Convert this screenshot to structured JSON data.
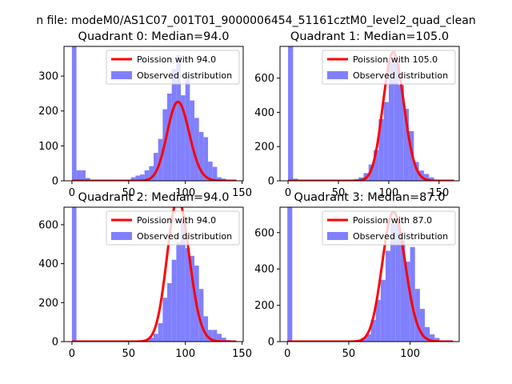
{
  "figure": {
    "suptitle": "n file: modeM0/AS1C07_001T01_9000006454_51161cztM0_level2_quad_clean"
  },
  "colors": {
    "histogram": "#8080ff",
    "poisson_line": "#ff0000",
    "axes": "#000000",
    "background": "#ffffff"
  },
  "chart_data": [
    {
      "type": "bar",
      "title": "Quadrant 0: Median=94.0",
      "xlim": [
        -7,
        151
      ],
      "ylim": [
        0,
        385
      ],
      "xticks": [
        0,
        50,
        100,
        150
      ],
      "yticks": [
        0,
        100,
        200,
        300
      ],
      "bin_width": 4,
      "bins": [
        [
          0,
          385
        ],
        [
          4,
          30
        ],
        [
          8,
          30
        ],
        [
          12,
          8
        ],
        [
          16,
          2
        ],
        [
          52,
          10
        ],
        [
          56,
          15
        ],
        [
          60,
          18
        ],
        [
          64,
          30
        ],
        [
          68,
          42
        ],
        [
          72,
          80
        ],
        [
          76,
          120
        ],
        [
          80,
          205
        ],
        [
          84,
          250
        ],
        [
          88,
          320
        ],
        [
          92,
          360
        ],
        [
          96,
          245
        ],
        [
          100,
          300
        ],
        [
          104,
          230
        ],
        [
          108,
          180
        ],
        [
          112,
          140
        ],
        [
          116,
          125
        ],
        [
          120,
          55
        ],
        [
          124,
          40
        ],
        [
          128,
          10
        ],
        [
          132,
          6
        ],
        [
          136,
          2
        ]
      ],
      "legend": [
        {
          "label": "Poission with 94.0",
          "kind": "line"
        },
        {
          "label": "Observed distribution",
          "kind": "patch"
        }
      ],
      "poisson": {
        "lambda": 94.0,
        "scale": 5500,
        "x": [
          0,
          145
        ]
      }
    },
    {
      "type": "bar",
      "title": "Quadrant 1: Median=105.0",
      "xlim": [
        -8,
        170
      ],
      "ylim": [
        0,
        785
      ],
      "xticks": [
        0,
        50,
        100,
        150
      ],
      "yticks": [
        0,
        200,
        400,
        600
      ],
      "bin_width": 5,
      "bins": [
        [
          0,
          785
        ],
        [
          5,
          12
        ],
        [
          10,
          5
        ],
        [
          60,
          6
        ],
        [
          65,
          10
        ],
        [
          70,
          20
        ],
        [
          75,
          45
        ],
        [
          80,
          95
        ],
        [
          85,
          180
        ],
        [
          90,
          360
        ],
        [
          95,
          460
        ],
        [
          100,
          690
        ],
        [
          105,
          700
        ],
        [
          110,
          560
        ],
        [
          115,
          420
        ],
        [
          120,
          290
        ],
        [
          125,
          110
        ],
        [
          130,
          60
        ],
        [
          135,
          40
        ],
        [
          140,
          20
        ],
        [
          145,
          6
        ],
        [
          150,
          3
        ]
      ],
      "legend": [
        {
          "label": "Poission with 105.0",
          "kind": "line"
        },
        {
          "label": "Observed distribution",
          "kind": "patch"
        }
      ],
      "poisson": {
        "lambda": 105.0,
        "scale": 19300,
        "x": [
          0,
          165
        ]
      }
    },
    {
      "type": "bar",
      "title": "Quadrant 2: Median=94.0",
      "xlim": [
        -7,
        151
      ],
      "ylim": [
        0,
        690
      ],
      "xticks": [
        0,
        50,
        100,
        150
      ],
      "yticks": [
        0,
        200,
        400,
        600
      ],
      "bin_width": 4,
      "bins": [
        [
          0,
          690
        ],
        [
          60,
          5
        ],
        [
          64,
          10
        ],
        [
          68,
          20
        ],
        [
          72,
          40
        ],
        [
          76,
          95
        ],
        [
          80,
          225
        ],
        [
          84,
          300
        ],
        [
          88,
          420
        ],
        [
          92,
          510
        ],
        [
          96,
          620
        ],
        [
          100,
          480
        ],
        [
          104,
          440
        ],
        [
          108,
          390
        ],
        [
          112,
          270
        ],
        [
          116,
          130
        ],
        [
          120,
          60
        ],
        [
          124,
          60
        ],
        [
          128,
          40
        ],
        [
          132,
          20
        ],
        [
          136,
          8
        ],
        [
          140,
          3
        ]
      ],
      "legend": [
        {
          "label": "Poission with 94.0",
          "kind": "line"
        },
        {
          "label": "Observed distribution",
          "kind": "patch"
        }
      ],
      "poisson": {
        "lambda": 94.0,
        "scale": 17800,
        "x": [
          0,
          145
        ]
      }
    },
    {
      "type": "bar",
      "title": "Quadrant 3: Median=87.0",
      "xlim": [
        -6,
        140
      ],
      "ylim": [
        0,
        740
      ],
      "xticks": [
        0,
        50,
        100
      ],
      "yticks": [
        0,
        200,
        400,
        600
      ],
      "bin_width": 4,
      "bins": [
        [
          0,
          740
        ],
        [
          52,
          5
        ],
        [
          56,
          10
        ],
        [
          60,
          20
        ],
        [
          64,
          40
        ],
        [
          68,
          120
        ],
        [
          72,
          230
        ],
        [
          76,
          340
        ],
        [
          80,
          500
        ],
        [
          84,
          650
        ],
        [
          88,
          660
        ],
        [
          92,
          560
        ],
        [
          96,
          440
        ],
        [
          100,
          520
        ],
        [
          104,
          290
        ],
        [
          108,
          180
        ],
        [
          112,
          80
        ],
        [
          116,
          40
        ],
        [
          120,
          20
        ],
        [
          124,
          5
        ],
        [
          128,
          2
        ]
      ],
      "legend": [
        {
          "label": "Poission with 87.0",
          "kind": "line"
        },
        {
          "label": "Observed distribution",
          "kind": "patch"
        }
      ],
      "poisson": {
        "lambda": 87.0,
        "scale": 16700,
        "x": [
          0,
          135
        ]
      }
    }
  ]
}
